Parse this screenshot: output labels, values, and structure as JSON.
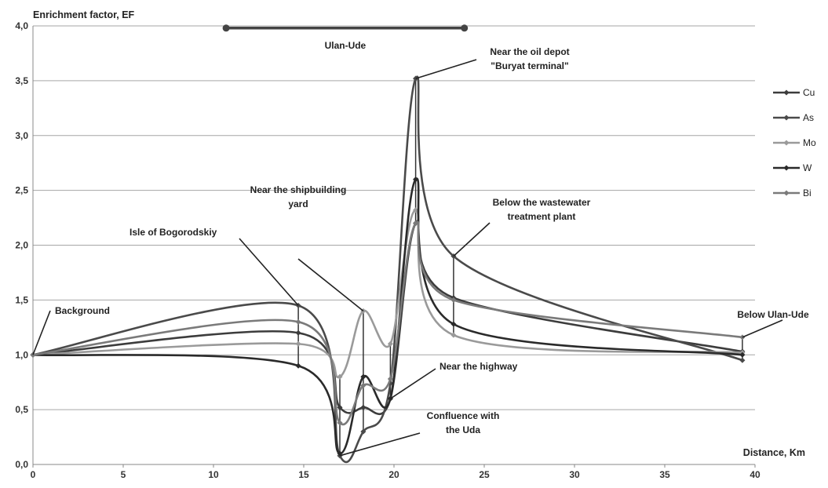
{
  "chart_data": {
    "type": "line",
    "xlabel": "Distance, Km",
    "ylabel": "Enrichment factor, EF",
    "xlim": [
      0,
      40
    ],
    "ylim": [
      0,
      4
    ],
    "x_ticks": [
      "0",
      "5",
      "10",
      "15",
      "20",
      "25",
      "30",
      "35",
      "40"
    ],
    "y_ticks": [
      "0,0",
      "0,5",
      "1,0",
      "1,5",
      "2,0",
      "2,5",
      "3,0",
      "3,5",
      "4,0"
    ],
    "grid": "horizontal",
    "legend_position": "right",
    "x": [
      0,
      14.7,
      17,
      18.3,
      19.8,
      21.2,
      23.3,
      39.3
    ],
    "series": [
      {
        "name": "Cu",
        "color": "#3c3c3c",
        "values": [
          1.0,
          1.2,
          0.52,
          0.52,
          0.6,
          2.2,
          1.52,
          1.03
        ]
      },
      {
        "name": "As",
        "color": "#4a4a4a",
        "values": [
          1.0,
          1.45,
          0.08,
          0.3,
          0.74,
          3.52,
          1.9,
          0.95
        ]
      },
      {
        "name": "Mo",
        "color": "#9a9a9a",
        "values": [
          1.0,
          1.1,
          0.8,
          1.4,
          1.1,
          2.32,
          1.18,
          1.02
        ]
      },
      {
        "name": "W",
        "color": "#2a2a2a",
        "values": [
          1.0,
          0.9,
          0.1,
          0.8,
          0.6,
          2.6,
          1.28,
          1.0
        ]
      },
      {
        "name": "Bi",
        "color": "#7a7a7a",
        "values": [
          1.0,
          1.3,
          0.38,
          0.72,
          0.78,
          2.2,
          1.5,
          1.16
        ]
      }
    ],
    "city_range": {
      "label": "Ulan-Ude",
      "start": 10.7,
      "end": 23.9,
      "y": 3.98
    },
    "annotations": [
      {
        "id": "background",
        "text": [
          "Background"
        ],
        "x": 0,
        "y": 1.0
      },
      {
        "id": "isle",
        "text": [
          "Isle of Bogorodskiy"
        ],
        "x": 14.7,
        "y": 1.45
      },
      {
        "id": "shipyard",
        "text": [
          "Near the shipbuilding",
          "yard"
        ],
        "x": 18.3,
        "y": 1.4
      },
      {
        "id": "confluence",
        "text": [
          "Confluence with",
          "the Uda"
        ],
        "x": 17,
        "y": 0.08
      },
      {
        "id": "highway",
        "text": [
          "Near the highway"
        ],
        "x": 19.8,
        "y": 0.6
      },
      {
        "id": "oildepot",
        "text": [
          "Near the oil depot",
          "\"Buryat terminal\""
        ],
        "x": 21.2,
        "y": 3.52
      },
      {
        "id": "wastewater",
        "text": [
          "Below the wastewater",
          "treatment plant"
        ],
        "x": 23.3,
        "y": 1.9
      },
      {
        "id": "below",
        "text": [
          "Below Ulan-Ude"
        ],
        "x": 39.3,
        "y": 1.16
      }
    ]
  }
}
